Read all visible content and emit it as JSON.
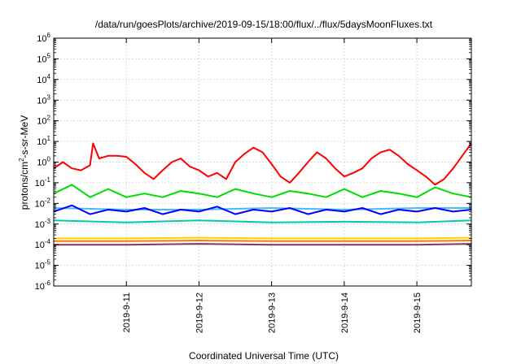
{
  "chart_data": {
    "type": "line",
    "title": "/data/run/goesPlots/archive/2019-09-15/18:00/flux/../flux/5daysMoonFluxes.txt",
    "xlabel": "Coordinated Universal Time (UTC)",
    "ylabel_main": "protons/cm",
    "ylabel_sup": "2",
    "ylabel_tail": "-s-sr-MeV",
    "yscale": "log",
    "ylim": [
      1e-06,
      1000000.0
    ],
    "xlim": [
      "2019-09-10T00:00",
      "2019-09-15T18:00"
    ],
    "grid": true,
    "legend": "none",
    "y_ticks": [
      {
        "base": "10",
        "exp": "-6"
      },
      {
        "base": "10",
        "exp": "-5"
      },
      {
        "base": "10",
        "exp": "-4"
      },
      {
        "base": "10",
        "exp": "-3"
      },
      {
        "base": "10",
        "exp": "-2"
      },
      {
        "base": "10",
        "exp": "-1"
      },
      {
        "base": "10",
        "exp": "0"
      },
      {
        "base": "10",
        "exp": "1"
      },
      {
        "base": "10",
        "exp": "2"
      },
      {
        "base": "10",
        "exp": "3"
      },
      {
        "base": "10",
        "exp": "4"
      },
      {
        "base": "10",
        "exp": "5"
      },
      {
        "base": "10",
        "exp": "6"
      }
    ],
    "x_ticks": [
      "2019-9-11",
      "2019-9-12",
      "2019-9-13",
      "2019-9-14",
      "2019-9-15"
    ],
    "series": [
      {
        "color": "#ff0000",
        "x": [
          "2019-09-10T00:00",
          "2019-09-10T03:00",
          "2019-09-10T06:00",
          "2019-09-10T09:00",
          "2019-09-10T12:00",
          "2019-09-10T13:00",
          "2019-09-10T15:00",
          "2019-09-10T18:00",
          "2019-09-10T21:00",
          "2019-09-11T00:00",
          "2019-09-11T03:00",
          "2019-09-11T06:00",
          "2019-09-11T09:00",
          "2019-09-11T12:00",
          "2019-09-11T15:00",
          "2019-09-11T18:00",
          "2019-09-11T21:00",
          "2019-09-12T00:00",
          "2019-09-12T03:00",
          "2019-09-12T06:00",
          "2019-09-12T09:00",
          "2019-09-12T12:00",
          "2019-09-12T15:00",
          "2019-09-12T18:00",
          "2019-09-12T21:00",
          "2019-09-13T00:00",
          "2019-09-13T03:00",
          "2019-09-13T06:00",
          "2019-09-13T09:00",
          "2019-09-13T12:00",
          "2019-09-13T15:00",
          "2019-09-13T18:00",
          "2019-09-13T21:00",
          "2019-09-14T00:00",
          "2019-09-14T03:00",
          "2019-09-14T06:00",
          "2019-09-14T09:00",
          "2019-09-14T12:00",
          "2019-09-14T15:00",
          "2019-09-14T18:00",
          "2019-09-14T21:00",
          "2019-09-15T00:00",
          "2019-09-15T03:00",
          "2019-09-15T06:00",
          "2019-09-15T09:00",
          "2019-09-15T12:00",
          "2019-09-15T15:00",
          "2019-09-15T18:00"
        ],
        "y": [
          0.5,
          1.0,
          0.5,
          0.4,
          0.7,
          8,
          1.5,
          2.0,
          2.0,
          1.8,
          0.8,
          0.3,
          0.15,
          0.4,
          1.0,
          1.5,
          0.6,
          0.4,
          0.2,
          0.3,
          0.15,
          1.0,
          2.5,
          5.0,
          3.0,
          0.8,
          0.2,
          0.1,
          0.3,
          1.0,
          3.0,
          1.5,
          0.5,
          0.2,
          0.3,
          0.5,
          1.5,
          3.0,
          4.0,
          2.0,
          0.8,
          0.4,
          0.2,
          0.08,
          0.15,
          0.5,
          2.0,
          8.0
        ]
      },
      {
        "color": "#00dd00",
        "x": [
          "2019-09-10T00:00",
          "2019-09-10T06:00",
          "2019-09-10T12:00",
          "2019-09-10T18:00",
          "2019-09-11T00:00",
          "2019-09-11T06:00",
          "2019-09-11T12:00",
          "2019-09-11T18:00",
          "2019-09-12T00:00",
          "2019-09-12T06:00",
          "2019-09-12T12:00",
          "2019-09-12T18:00",
          "2019-09-13T00:00",
          "2019-09-13T06:00",
          "2019-09-13T12:00",
          "2019-09-13T18:00",
          "2019-09-14T00:00",
          "2019-09-14T06:00",
          "2019-09-14T12:00",
          "2019-09-14T18:00",
          "2019-09-15T00:00",
          "2019-09-15T06:00",
          "2019-09-15T12:00",
          "2019-09-15T18:00"
        ],
        "y": [
          0.03,
          0.08,
          0.02,
          0.05,
          0.02,
          0.03,
          0.02,
          0.04,
          0.03,
          0.02,
          0.05,
          0.03,
          0.02,
          0.04,
          0.03,
          0.02,
          0.05,
          0.02,
          0.04,
          0.03,
          0.02,
          0.06,
          0.03,
          0.02
        ]
      },
      {
        "color": "#44bbff",
        "x": [
          "2019-09-10T00:00",
          "2019-09-11T00:00",
          "2019-09-12T00:00",
          "2019-09-13T00:00",
          "2019-09-14T00:00",
          "2019-09-15T00:00",
          "2019-09-15T18:00"
        ],
        "y": [
          0.006,
          0.005,
          0.005,
          0.006,
          0.005,
          0.006,
          0.006
        ]
      },
      {
        "color": "#0000ff",
        "x": [
          "2019-09-10T00:00",
          "2019-09-10T06:00",
          "2019-09-10T12:00",
          "2019-09-10T18:00",
          "2019-09-11T00:00",
          "2019-09-11T06:00",
          "2019-09-11T12:00",
          "2019-09-11T18:00",
          "2019-09-12T00:00",
          "2019-09-12T06:00",
          "2019-09-12T12:00",
          "2019-09-12T18:00",
          "2019-09-13T00:00",
          "2019-09-13T06:00",
          "2019-09-13T12:00",
          "2019-09-13T18:00",
          "2019-09-14T00:00",
          "2019-09-14T06:00",
          "2019-09-14T12:00",
          "2019-09-14T18:00",
          "2019-09-15T00:00",
          "2019-09-15T06:00",
          "2019-09-15T12:00",
          "2019-09-15T18:00"
        ],
        "y": [
          0.004,
          0.008,
          0.003,
          0.005,
          0.004,
          0.006,
          0.003,
          0.005,
          0.004,
          0.007,
          0.003,
          0.005,
          0.004,
          0.006,
          0.003,
          0.005,
          0.004,
          0.006,
          0.003,
          0.005,
          0.004,
          0.006,
          0.004,
          0.005
        ]
      },
      {
        "color": "#00ccaa",
        "x": [
          "2019-09-10T00:00",
          "2019-09-11T00:00",
          "2019-09-12T00:00",
          "2019-09-13T00:00",
          "2019-09-14T00:00",
          "2019-09-15T00:00",
          "2019-09-15T18:00"
        ],
        "y": [
          0.0015,
          0.0012,
          0.0015,
          0.0012,
          0.0013,
          0.0012,
          0.0015
        ]
      },
      {
        "color": "#ffd000",
        "x": [
          "2019-09-10T00:00",
          "2019-09-11T00:00",
          "2019-09-12T00:00",
          "2019-09-13T00:00",
          "2019-09-14T00:00",
          "2019-09-15T00:00",
          "2019-09-15T18:00"
        ],
        "y": [
          0.0002,
          0.0002,
          0.00022,
          0.0002,
          0.0002,
          0.0002,
          0.00022
        ]
      },
      {
        "color": "#ff7700",
        "x": [
          "2019-09-10T00:00",
          "2019-09-11T00:00",
          "2019-09-12T00:00",
          "2019-09-13T00:00",
          "2019-09-14T00:00",
          "2019-09-15T00:00",
          "2019-09-15T18:00"
        ],
        "y": [
          0.00015,
          0.00015,
          0.00016,
          0.00015,
          0.00015,
          0.00015,
          0.00016
        ]
      },
      {
        "color": "#883366",
        "x": [
          "2019-09-10T00:00",
          "2019-09-11T00:00",
          "2019-09-12T00:00",
          "2019-09-13T00:00",
          "2019-09-14T00:00",
          "2019-09-15T00:00",
          "2019-09-15T18:00"
        ],
        "y": [
          0.0001,
          0.0001,
          0.00011,
          0.0001,
          0.0001,
          0.0001,
          0.00011
        ]
      }
    ]
  }
}
